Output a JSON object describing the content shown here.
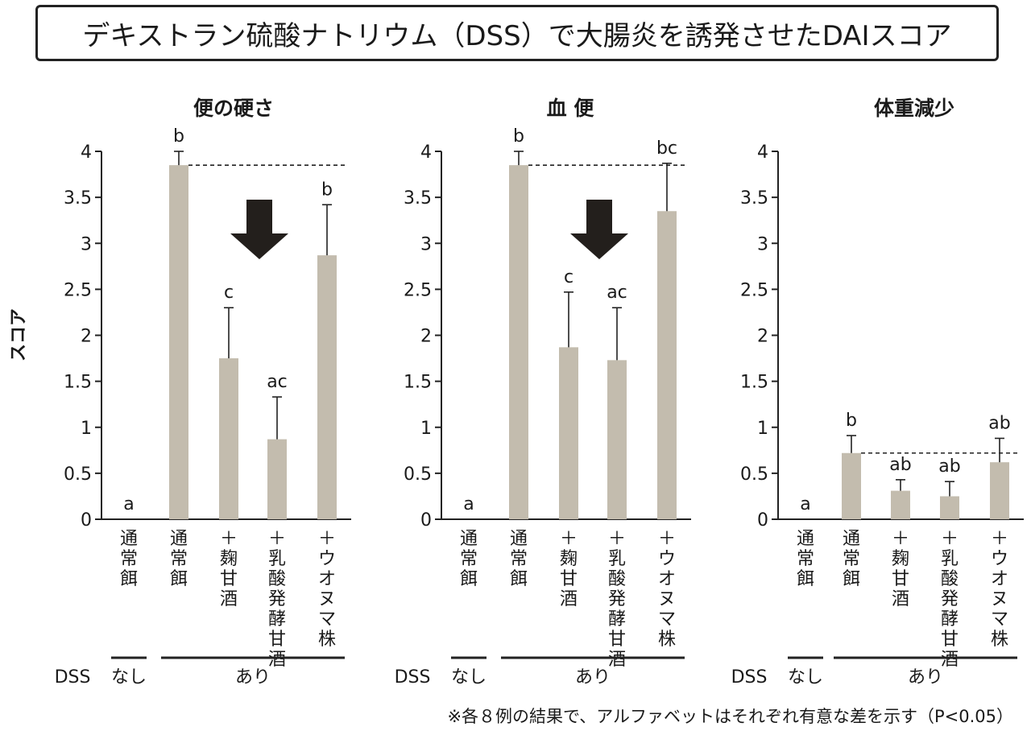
{
  "title": "デキストラン硫酸ナトリウム（DSS）で大腸炎を誘発させたDAIスコア",
  "ylabel": "スコア",
  "dss_label": "DSS",
  "dss_none": "なし",
  "dss_yes": "あり",
  "footnote": "※各８例の結果で、アルファベットはそれぞれ有意な差を示す（P<0.05）",
  "colors": {
    "bar": "#c3bcae",
    "axis": "#222222",
    "arrow": "#231f1c"
  },
  "chart_data": [
    {
      "type": "bar",
      "title": "便の硬さ",
      "ylim": [
        0,
        4
      ],
      "yticks": [
        "0",
        "0.5",
        "1",
        "1.5",
        "2",
        "2.5",
        "3",
        "3.5",
        "4"
      ],
      "categories": [
        "通常餌",
        "通常餌",
        "＋麹甘酒",
        "＋乳酸発酵甘酒",
        "＋ウオヌマ株"
      ],
      "values": [
        0,
        3.85,
        1.75,
        0.87,
        2.87
      ],
      "errors": [
        0,
        0.15,
        0.55,
        0.46,
        0.55
      ],
      "letters": [
        "a",
        "b",
        "c",
        "ac",
        "b"
      ],
      "reference_line": 3.85,
      "arrow": true
    },
    {
      "type": "bar",
      "title": "血 便",
      "ylim": [
        0,
        4
      ],
      "yticks": [
        "0",
        "0.5",
        "1",
        "1.5",
        "2",
        "2.5",
        "3",
        "3.5",
        "4"
      ],
      "categories": [
        "通常餌",
        "通常餌",
        "＋麹甘酒",
        "＋乳酸発酵甘酒",
        "＋ウオヌマ株"
      ],
      "values": [
        0,
        3.85,
        1.87,
        1.73,
        3.35
      ],
      "errors": [
        0,
        0.15,
        0.6,
        0.57,
        0.52
      ],
      "letters": [
        "a",
        "b",
        "c",
        "ac",
        "bc"
      ],
      "reference_line": 3.85,
      "arrow": true
    },
    {
      "type": "bar",
      "title": "体重減少",
      "ylim": [
        0,
        4
      ],
      "yticks": [
        "0",
        "0.5",
        "1",
        "1.5",
        "2",
        "2.5",
        "3",
        "3.5",
        "4"
      ],
      "categories": [
        "通常餌",
        "通常餌",
        "＋麹甘酒",
        "＋乳酸発酵甘酒",
        "＋ウオヌマ株"
      ],
      "values": [
        0,
        0.72,
        0.31,
        0.25,
        0.62
      ],
      "errors": [
        0,
        0.19,
        0.12,
        0.16,
        0.26
      ],
      "letters": [
        "a",
        "b",
        "ab",
        "ab",
        "ab"
      ],
      "reference_line": 0.72,
      "arrow": false
    }
  ]
}
